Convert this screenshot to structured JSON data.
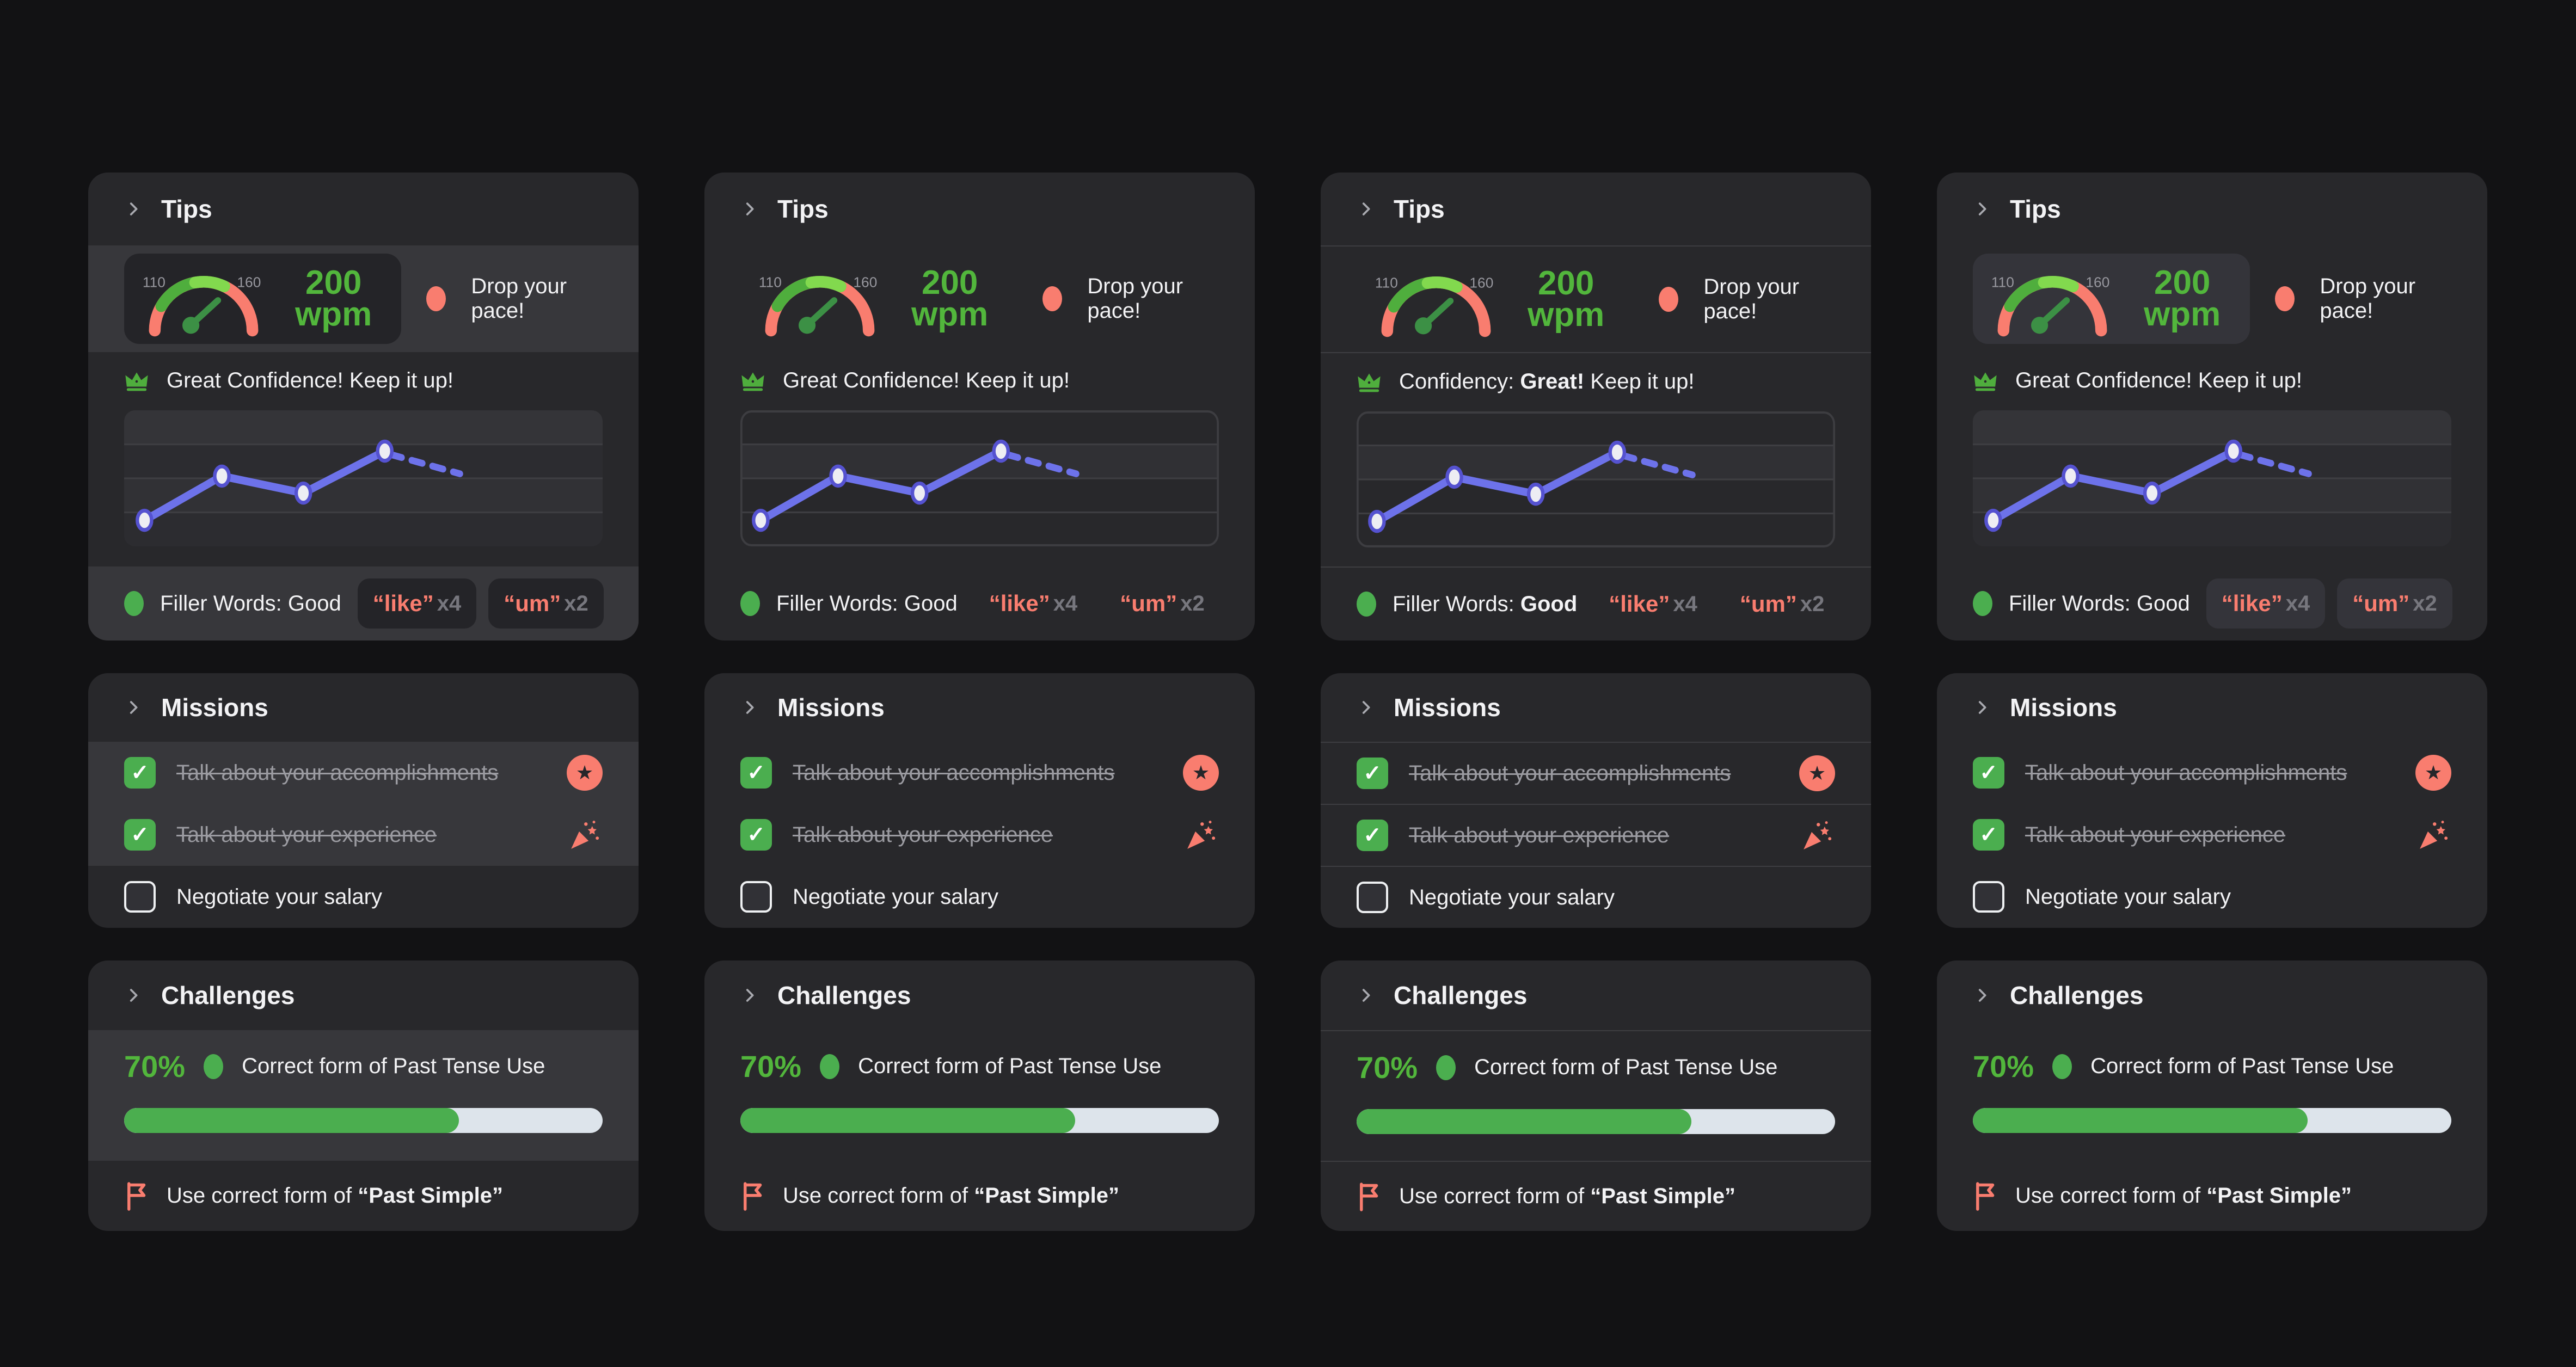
{
  "colors": {
    "background": "#121214",
    "card": "#28282b",
    "highlight_row": "#37373b",
    "accent_green": "#52b63c",
    "accent_salmon": "#f97d6f",
    "line_purple": "#6d72ea",
    "progress_track": "#dde4eb",
    "text": "#f3f3f5",
    "muted": "#9b9ba1"
  },
  "icons": {
    "check": "✓",
    "star": "★"
  },
  "chart_data": {
    "type": "line",
    "title": "Confidence trend sparkline (no axis labels shown)",
    "x_percent": [
      4,
      20,
      37,
      54
    ],
    "y_percent_from_top": [
      81,
      48,
      61,
      30
    ],
    "projection": {
      "x_percent": 70,
      "y_percent_from_top": 47,
      "style": "dashed"
    },
    "gridlines": 3,
    "legend_position": "none",
    "line_color": "#6d72ea"
  },
  "columns": [
    {
      "variant": "highlight",
      "tips": {
        "title": "Tips",
        "pace": {
          "min": "110",
          "max": "160",
          "value": "200",
          "unit": "wpm",
          "message": "Drop your pace!"
        },
        "confidence": {
          "pre": "Great Confidence! Keep it up!",
          "bold": "",
          "post": ""
        },
        "filler": {
          "label_pre": "Filler Words: Good",
          "label_bold": "",
          "words": [
            {
              "word": "“like”",
              "count": "x4"
            },
            {
              "word": "“um”",
              "count": "x2"
            }
          ]
        }
      },
      "missions": {
        "title": "Missions",
        "items": [
          {
            "label": "Talk about your accomplishments",
            "done": true,
            "reward_icon": "star-badge"
          },
          {
            "label": "Talk about your experience",
            "done": true,
            "reward_icon": "party-popper"
          },
          {
            "label": "Negotiate your salary",
            "done": false,
            "reward_icon": null
          }
        ]
      },
      "challenges": {
        "title": "Challenges",
        "percent": "70%",
        "progress": 70,
        "label": "Correct form of Past Tense Use",
        "footer_pre": "Use correct form of ",
        "footer_bold": "“Past Simple”"
      }
    },
    {
      "variant": "flat",
      "tips": {
        "title": "Tips",
        "pace": {
          "min": "110",
          "max": "160",
          "value": "200",
          "unit": "wpm",
          "message": "Drop your pace!"
        },
        "confidence": {
          "pre": "Great Confidence! Keep it up!",
          "bold": "",
          "post": ""
        },
        "filler": {
          "label_pre": "Filler Words: Good",
          "label_bold": "",
          "words": [
            {
              "word": "“like”",
              "count": "x4"
            },
            {
              "word": "“um”",
              "count": "x2"
            }
          ]
        }
      },
      "missions": {
        "title": "Missions",
        "items": [
          {
            "label": "Talk about your accomplishments",
            "done": true,
            "reward_icon": "star-badge"
          },
          {
            "label": "Talk about your experience",
            "done": true,
            "reward_icon": "party-popper"
          },
          {
            "label": "Negotiate your salary",
            "done": false,
            "reward_icon": null
          }
        ]
      },
      "challenges": {
        "title": "Challenges",
        "percent": "70%",
        "progress": 70,
        "label": "Correct form of Past Tense Use",
        "footer_pre": "Use correct form of ",
        "footer_bold": "“Past Simple”"
      }
    },
    {
      "variant": "divided",
      "tips": {
        "title": "Tips",
        "pace": {
          "min": "110",
          "max": "160",
          "value": "200",
          "unit": "wpm",
          "message": "Drop your pace!"
        },
        "confidence": {
          "pre": "Confidency: ",
          "bold": "Great!",
          "post": " Keep it up!"
        },
        "filler": {
          "label_pre": "Filler Words: ",
          "label_bold": "Good",
          "words": [
            {
              "word": "“like”",
              "count": "x4"
            },
            {
              "word": "“um”",
              "count": "x2"
            }
          ]
        }
      },
      "missions": {
        "title": "Missions",
        "items": [
          {
            "label": "Talk about your accomplishments",
            "done": true,
            "reward_icon": "star-badge"
          },
          {
            "label": "Talk about your experience",
            "done": true,
            "reward_icon": "party-popper"
          },
          {
            "label": "Negotiate your salary",
            "done": false,
            "reward_icon": null
          }
        ]
      },
      "challenges": {
        "title": "Challenges",
        "percent": "70%",
        "progress": 70,
        "label": "Correct form of Past Tense Use",
        "footer_pre": "Use correct form of ",
        "footer_bold": "“Past Simple”"
      }
    },
    {
      "variant": "boxed",
      "tips": {
        "title": "Tips",
        "pace": {
          "min": "110",
          "max": "160",
          "value": "200",
          "unit": "wpm",
          "message": "Drop your pace!"
        },
        "confidence": {
          "pre": "Great Confidence! Keep it up!",
          "bold": "",
          "post": ""
        },
        "filler": {
          "label_pre": "Filler Words: Good",
          "label_bold": "",
          "words": [
            {
              "word": "“like”",
              "count": "x4"
            },
            {
              "word": "“um”",
              "count": "x2"
            }
          ]
        }
      },
      "missions": {
        "title": "Missions",
        "items": [
          {
            "label": "Talk about your accomplishments",
            "done": true,
            "reward_icon": "star-badge"
          },
          {
            "label": "Talk about your experience",
            "done": true,
            "reward_icon": "party-popper"
          },
          {
            "label": "Negotiate your salary",
            "done": false,
            "reward_icon": null
          }
        ]
      },
      "challenges": {
        "title": "Challenges",
        "percent": "70%",
        "progress": 70,
        "label": "Correct form of Past Tense Use",
        "footer_pre": "Use correct form of ",
        "footer_bold": "“Past Simple”"
      }
    }
  ]
}
